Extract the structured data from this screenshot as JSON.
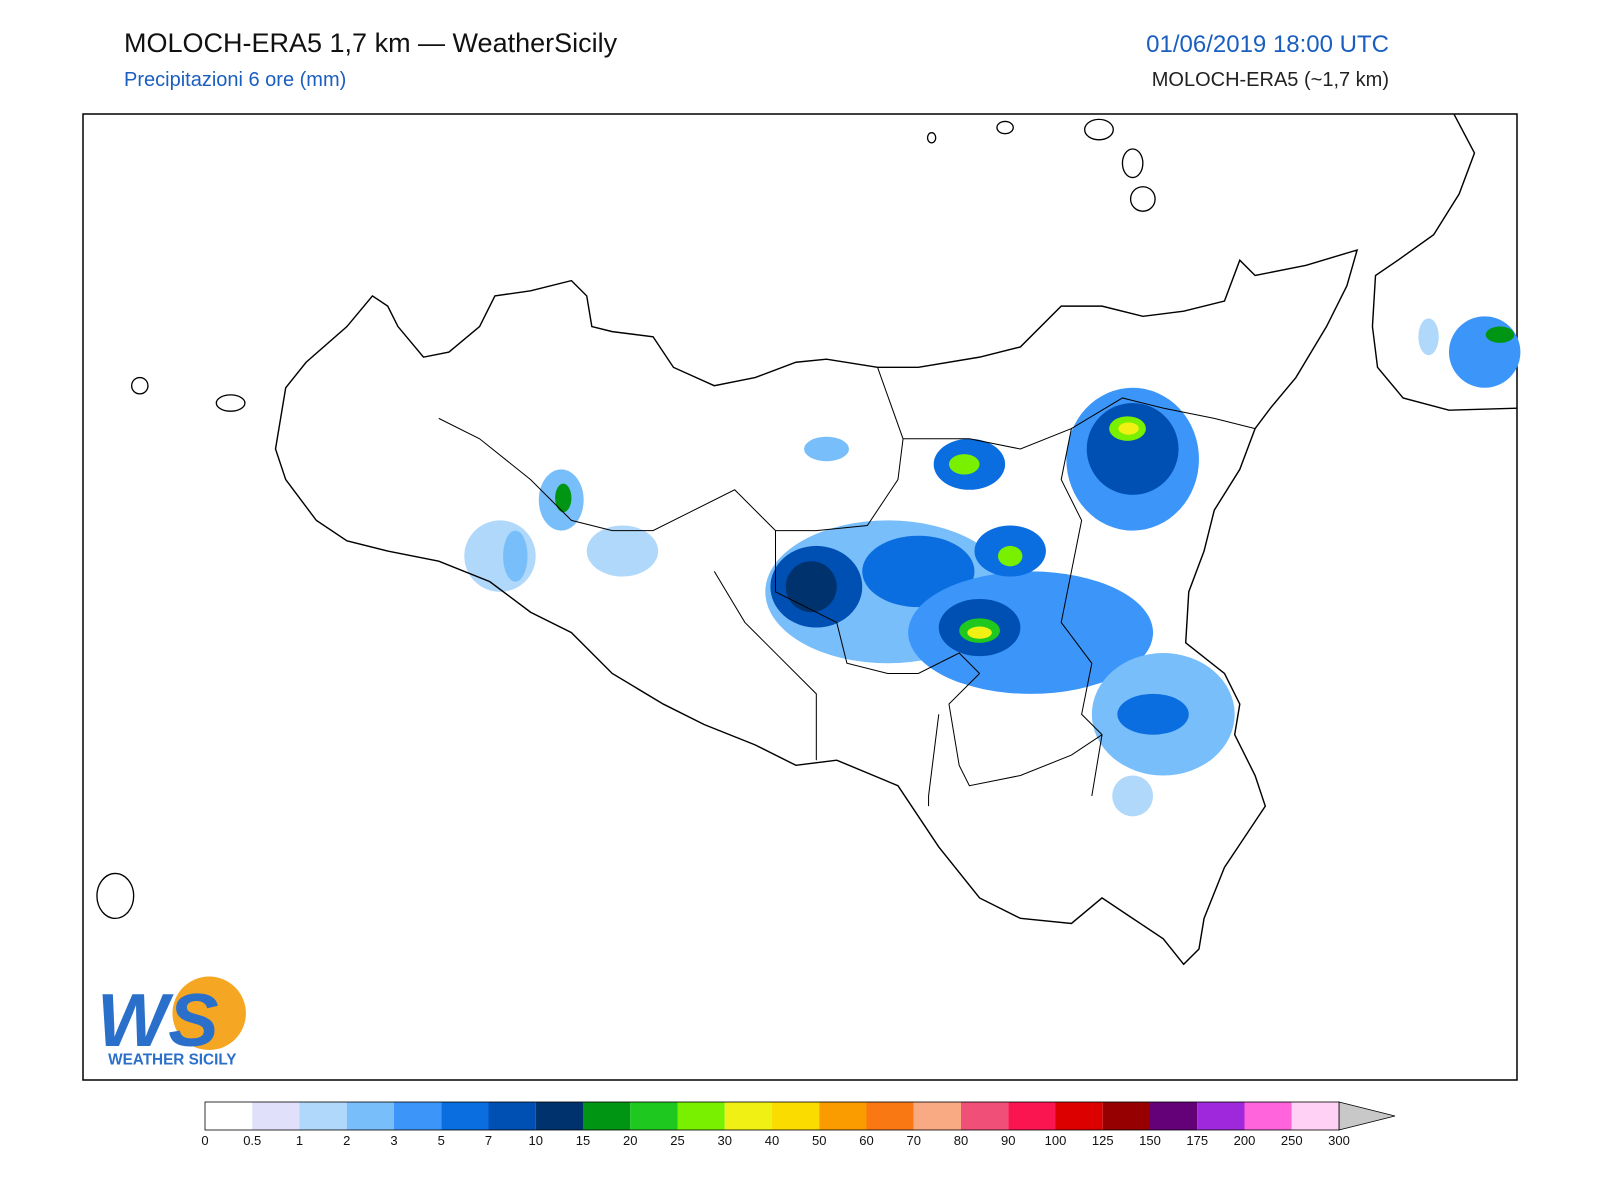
{
  "header": {
    "title": "MOLOCH-ERA5 1,7 km — WeatherSicily",
    "subtitle": "Precipitazioni 6 ore (mm)",
    "datetime": "01/06/2019 18:00 UTC",
    "model": "MOLOCH-ERA5 (~1,7 km)"
  },
  "logo": {
    "text": "WS",
    "caption": "WEATHER SICILY"
  },
  "colorbar": {
    "ticks": [
      0,
      0.5,
      1,
      2,
      3,
      5,
      7,
      10,
      15,
      20,
      25,
      30,
      40,
      50,
      60,
      70,
      80,
      90,
      100,
      125,
      150,
      175,
      200,
      250,
      300
    ],
    "colors": [
      "#ffffff",
      "#e0e0fa",
      "#b0d8fa",
      "#78befa",
      "#3c96fa",
      "#0a6ee0",
      "#0050b4",
      "#00326e",
      "#009614",
      "#1ec81e",
      "#78f000",
      "#f0f014",
      "#fadc00",
      "#fa9b00",
      "#fa7814",
      "#faaa82",
      "#f05078",
      "#fa1450",
      "#dc0000",
      "#960000",
      "#640078",
      "#a028dc",
      "#ff64dc",
      "#ffd2f5"
    ]
  }
}
